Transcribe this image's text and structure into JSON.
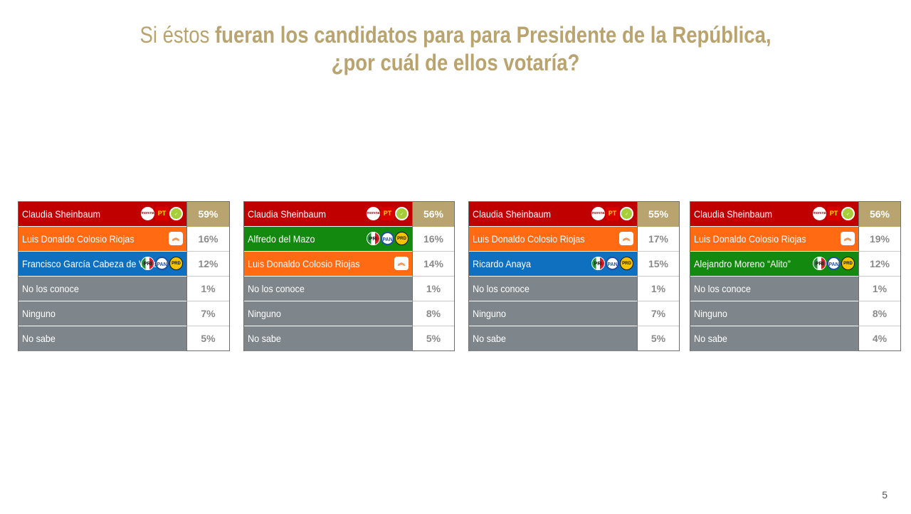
{
  "title": {
    "part1": "Si éstos ",
    "part2": "fueran los candidatos para para Presidente de la República,",
    "line2": "¿por cuál de ellos votaría?"
  },
  "colors": {
    "morena": "#c00000",
    "mc": "#ff6a13",
    "pri_pan_prd_blue": "#1070c0",
    "green": "#138a0f",
    "gray": "#7f868b",
    "accent": "#b9a46f"
  },
  "chart_data": [
    {
      "type": "table",
      "rows": [
        {
          "name": "Claudia Sheinbaum",
          "value": "59%",
          "color": "#c00000",
          "logos": [
            "morena",
            "pt",
            "verde"
          ]
        },
        {
          "name": "Luis Donaldo Colosio Riojas",
          "value": "16%",
          "color": "#ff6a13",
          "logos": [
            "mc"
          ]
        },
        {
          "name": "Francisco García Cabeza de Vaca",
          "value": "12%",
          "color": "#1070c0",
          "logos": [
            "pri",
            "pan",
            "prd"
          ]
        },
        {
          "name": "No los conoce",
          "value": "1%",
          "color": "#7f868b",
          "logos": []
        },
        {
          "name": "Ninguno",
          "value": "7%",
          "color": "#7f868b",
          "logos": []
        },
        {
          "name": "No sabe",
          "value": "5%",
          "color": "#7f868b",
          "logos": []
        }
      ]
    },
    {
      "type": "table",
      "rows": [
        {
          "name": "Claudia Sheinbaum",
          "value": "56%",
          "color": "#c00000",
          "logos": [
            "morena",
            "pt",
            "verde"
          ]
        },
        {
          "name": "Alfredo del Mazo",
          "value": "16%",
          "color": "#138a0f",
          "logos": [
            "pri",
            "pan",
            "prd"
          ]
        },
        {
          "name": "Luis Donaldo Colosio Riojas",
          "value": "14%",
          "color": "#ff6a13",
          "logos": [
            "mc"
          ]
        },
        {
          "name": "No los conoce",
          "value": "1%",
          "color": "#7f868b",
          "logos": []
        },
        {
          "name": "Ninguno",
          "value": "8%",
          "color": "#7f868b",
          "logos": []
        },
        {
          "name": "No sabe",
          "value": "5%",
          "color": "#7f868b",
          "logos": []
        }
      ]
    },
    {
      "type": "table",
      "rows": [
        {
          "name": "Claudia Sheinbaum",
          "value": "55%",
          "color": "#c00000",
          "logos": [
            "morena",
            "pt",
            "verde"
          ]
        },
        {
          "name": "Luis Donaldo Colosio Riojas",
          "value": "17%",
          "color": "#ff6a13",
          "logos": [
            "mc"
          ]
        },
        {
          "name": "Ricardo Anaya",
          "value": "15%",
          "color": "#1070c0",
          "logos": [
            "pri",
            "pan",
            "prd"
          ]
        },
        {
          "name": "No los conoce",
          "value": "1%",
          "color": "#7f868b",
          "logos": []
        },
        {
          "name": "Ninguno",
          "value": "7%",
          "color": "#7f868b",
          "logos": []
        },
        {
          "name": "No sabe",
          "value": "5%",
          "color": "#7f868b",
          "logos": []
        }
      ]
    },
    {
      "type": "table",
      "rows": [
        {
          "name": "Claudia Sheinbaum",
          "value": "56%",
          "color": "#c00000",
          "logos": [
            "morena",
            "pt",
            "verde"
          ]
        },
        {
          "name": "Luis Donaldo Colosio Riojas",
          "value": "19%",
          "color": "#ff6a13",
          "logos": [
            "mc"
          ]
        },
        {
          "name": "Alejandro Moreno “Alito”",
          "value": "12%",
          "color": "#138a0f",
          "logos": [
            "pri",
            "pan",
            "prd"
          ]
        },
        {
          "name": "No los conoce",
          "value": "1%",
          "color": "#7f868b",
          "logos": []
        },
        {
          "name": "Ninguno",
          "value": "8%",
          "color": "#7f868b",
          "logos": []
        },
        {
          "name": "No sabe",
          "value": "4%",
          "color": "#7f868b",
          "logos": []
        }
      ]
    }
  ],
  "logo_labels": {
    "morena": "morena",
    "pt": "PT",
    "verde": "✓",
    "pri": "PRI",
    "pan": "PAN",
    "prd": "PRD",
    "mc": "︽"
  },
  "page_number": "5"
}
